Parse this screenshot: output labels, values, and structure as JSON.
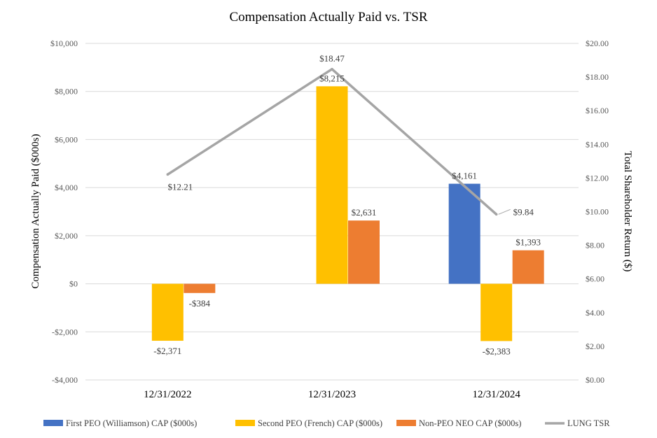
{
  "chart_data": {
    "type": "bar",
    "title": "Compensation Actually Paid vs. TSR",
    "ylabel": "Compensation Actually Paid ($000s)",
    "y2label": "Total Shareholder Return ($)",
    "categories": [
      "12/31/2022",
      "12/31/2023",
      "12/31/2024"
    ],
    "ylim": [
      -4000,
      10000
    ],
    "y_ticks": [
      -4000,
      -2000,
      0,
      2000,
      4000,
      6000,
      8000,
      10000
    ],
    "y_tick_labels": [
      "-$4,000",
      "-$2,000",
      "$0",
      "$2,000",
      "$4,000",
      "$6,000",
      "$8,000",
      "$10,000"
    ],
    "y2lim": [
      0,
      20
    ],
    "y2_ticks": [
      0,
      2,
      4,
      6,
      8,
      10,
      12,
      14,
      16,
      18,
      20
    ],
    "y2_tick_labels": [
      "$0.00",
      "$2.00",
      "$4.00",
      "$6.00",
      "$8.00",
      "$10.00",
      "$12.00",
      "$14.00",
      "$16.00",
      "$18.00",
      "$20.00"
    ],
    "grid": true,
    "legend_position": "bottom",
    "series": [
      {
        "name": "First PEO (Williamson) CAP ($000s)",
        "kind": "bar",
        "color": "#4472C4",
        "values": [
          null,
          null,
          4161
        ],
        "labels": [
          null,
          null,
          "$4,161"
        ]
      },
      {
        "name": "Second PEO (French) CAP ($000s)",
        "kind": "bar",
        "color": "#FFC000",
        "values": [
          -2371,
          8215,
          -2383
        ],
        "labels": [
          "-$2,371",
          "$8,215",
          "-$2,383"
        ]
      },
      {
        "name": "Non-PEO NEO CAP ($000s)",
        "kind": "bar",
        "color": "#ED7D31",
        "values": [
          -384,
          2631,
          1393
        ],
        "labels": [
          "-$384",
          "$2,631",
          "$1,393"
        ]
      },
      {
        "name": "LUNG TSR",
        "kind": "line",
        "axis": "secondary",
        "color": "#A5A5A5",
        "values": [
          12.21,
          18.47,
          9.84
        ],
        "labels": [
          "$12.21",
          "$18.47",
          "$9.84"
        ]
      }
    ]
  }
}
